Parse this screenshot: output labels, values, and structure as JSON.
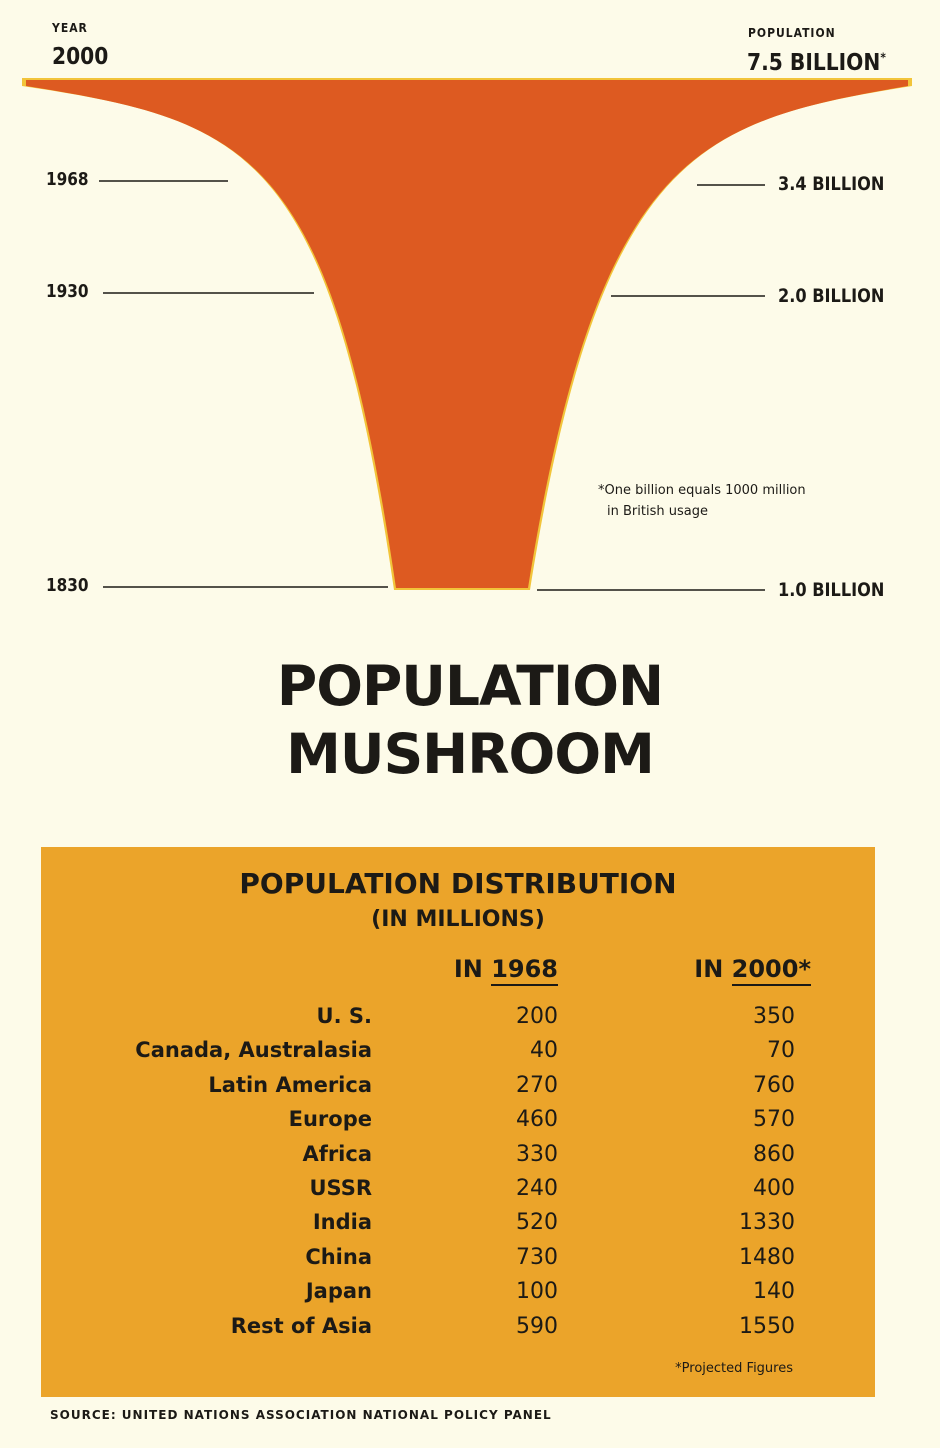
{
  "chart_data": {
    "type": "area",
    "title": "POPULATION MUSHROOM",
    "left_axis": {
      "heading": "YEAR",
      "top_label": "2000"
    },
    "right_axis": {
      "heading": "POPULATION",
      "top_label": "7.5 BILLION",
      "top_mark": "*"
    },
    "points": [
      {
        "year": "1830",
        "population": "1.0 BILLION",
        "billions": 1.0
      },
      {
        "year": "1930",
        "population": "2.0 BILLION",
        "billions": 2.0
      },
      {
        "year": "1968",
        "population": "3.4 BILLION",
        "billions": 3.4
      },
      {
        "year": "2000",
        "population": "7.5 BILLION",
        "billions": 7.5
      }
    ],
    "footnote": [
      "*One billion equals 1000 million",
      "in British usage"
    ],
    "colors": {
      "fill": "#dd5a21",
      "rim": "#f2c43a",
      "panel": "#eba42a"
    }
  },
  "table": {
    "title": "POPULATION DISTRIBUTION",
    "subtitle": "(IN MILLIONS)",
    "col1": {
      "prefix": "IN",
      "year": "1968"
    },
    "col2": {
      "prefix": "IN",
      "year": "2000*"
    },
    "rows": [
      {
        "region": "U. S.",
        "y1968": "200",
        "y2000": "350"
      },
      {
        "region": "Canada, Australasia",
        "y1968": "40",
        "y2000": "70"
      },
      {
        "region": "Latin America",
        "y1968": "270",
        "y2000": "760"
      },
      {
        "region": "Europe",
        "y1968": "460",
        "y2000": "570"
      },
      {
        "region": "Africa",
        "y1968": "330",
        "y2000": "860"
      },
      {
        "region": "USSR",
        "y1968": "240",
        "y2000": "400"
      },
      {
        "region": "India",
        "y1968": "520",
        "y2000": "1330"
      },
      {
        "region": "China",
        "y1968": "730",
        "y2000": "1480"
      },
      {
        "region": "Japan",
        "y1968": "100",
        "y2000": "140"
      },
      {
        "region": "Rest of Asia",
        "y1968": "590",
        "y2000": "1550"
      }
    ],
    "note": "*Projected Figures"
  },
  "source": "SOURCE: UNITED NATIONS ASSOCIATION NATIONAL POLICY PANEL"
}
